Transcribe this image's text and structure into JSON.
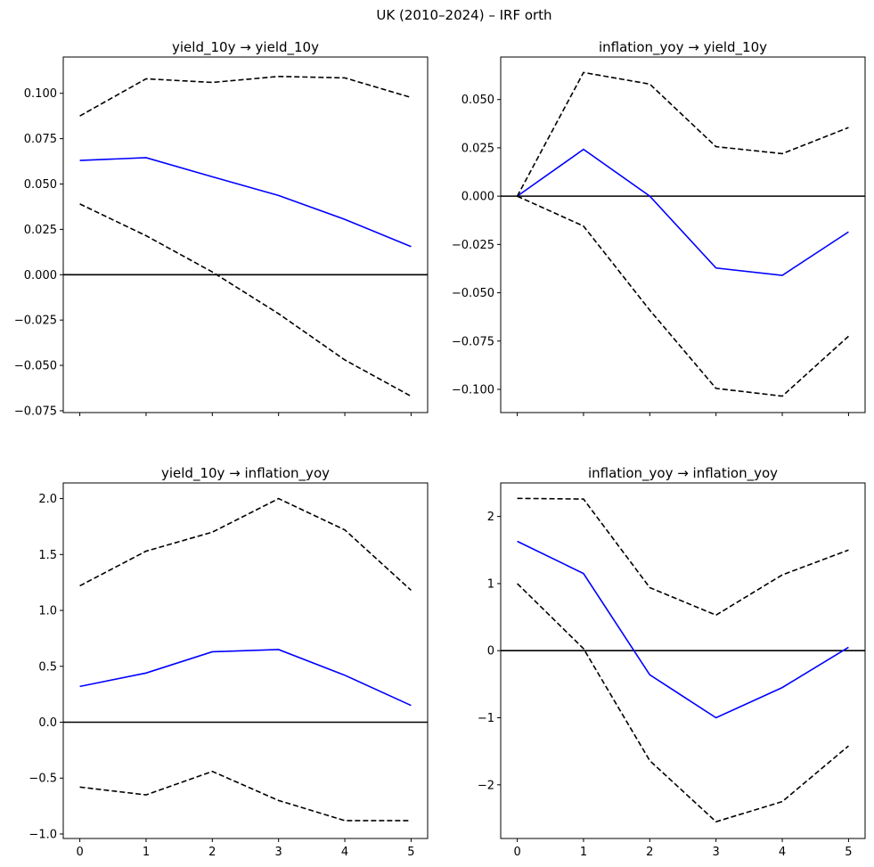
{
  "figure": {
    "title": "UK (2010–2024) – IRF orth"
  },
  "colors": {
    "irf_line": "#0000ff",
    "ci_band": "#000000",
    "zero_line": "#000000",
    "axes": "#000000",
    "background": "#ffffff"
  },
  "chart_data": [
    {
      "type": "line",
      "title": "yield_10y → yield_10y",
      "x": [
        0,
        1,
        2,
        3,
        4,
        5
      ],
      "xlim": [
        -0.25,
        5.25
      ],
      "ylim": [
        -0.076,
        0.12
      ],
      "yticks": [
        -0.075,
        -0.05,
        -0.025,
        0.0,
        0.025,
        0.05,
        0.075,
        0.1
      ],
      "yticklabels": [
        "−0.075",
        "−0.050",
        "−0.025",
        "0.000",
        "0.025",
        "0.050",
        "0.075",
        "0.100"
      ],
      "xticks": [
        0,
        1,
        2,
        3,
        4,
        5
      ],
      "xticklabels": [],
      "zero_line": true,
      "grid": false,
      "series": [
        {
          "role": "irf",
          "style": "solid",
          "values": [
            0.063,
            0.0645,
            0.054,
            0.0437,
            0.0305,
            0.0155
          ]
        },
        {
          "role": "upper",
          "style": "dashed",
          "values": [
            0.0875,
            0.108,
            0.106,
            0.1093,
            0.1085,
            0.0977
          ]
        },
        {
          "role": "lower",
          "style": "dashed",
          "values": [
            0.039,
            0.0215,
            0.0015,
            -0.0215,
            -0.047,
            -0.067
          ]
        }
      ]
    },
    {
      "type": "line",
      "title": "inflation_yoy → yield_10y",
      "x": [
        0,
        1,
        2,
        3,
        4,
        5
      ],
      "xlim": [
        -0.25,
        5.25
      ],
      "ylim": [
        -0.112,
        0.072
      ],
      "yticks": [
        -0.1,
        -0.075,
        -0.05,
        -0.025,
        0.0,
        0.025,
        0.05
      ],
      "yticklabels": [
        "−0.100",
        "−0.075",
        "−0.050",
        "−0.025",
        "0.000",
        "0.025",
        "0.050"
      ],
      "xticks": [
        0,
        1,
        2,
        3,
        4,
        5
      ],
      "xticklabels": [],
      "zero_line": true,
      "grid": false,
      "series": [
        {
          "role": "irf",
          "style": "solid",
          "values": [
            0.0,
            0.0242,
            0.0,
            -0.0372,
            -0.041,
            -0.0185
          ]
        },
        {
          "role": "upper",
          "style": "dashed",
          "values": [
            0.0,
            0.064,
            0.058,
            0.0256,
            0.022,
            0.0355
          ]
        },
        {
          "role": "lower",
          "style": "dashed",
          "values": [
            0.0,
            -0.0155,
            -0.059,
            -0.0995,
            -0.1035,
            -0.0725
          ]
        }
      ]
    },
    {
      "type": "line",
      "title": "yield_10y → inflation_yoy",
      "x": [
        0,
        1,
        2,
        3,
        4,
        5
      ],
      "xlim": [
        -0.25,
        5.25
      ],
      "ylim": [
        -1.04,
        2.14
      ],
      "yticks": [
        -1.0,
        -0.5,
        0.0,
        0.5,
        1.0,
        1.5,
        2.0
      ],
      "yticklabels": [
        "−1.0",
        "−0.5",
        "0.0",
        "0.5",
        "1.0",
        "1.5",
        "2.0"
      ],
      "xticks": [
        0,
        1,
        2,
        3,
        4,
        5
      ],
      "xticklabels": [
        "0",
        "1",
        "2",
        "3",
        "4",
        "5"
      ],
      "zero_line": true,
      "grid": false,
      "series": [
        {
          "role": "irf",
          "style": "solid",
          "values": [
            0.32,
            0.44,
            0.63,
            0.65,
            0.42,
            0.15
          ]
        },
        {
          "role": "upper",
          "style": "dashed",
          "values": [
            1.22,
            1.53,
            1.7,
            2.0,
            1.72,
            1.18
          ]
        },
        {
          "role": "lower",
          "style": "dashed",
          "values": [
            -0.58,
            -0.65,
            -0.44,
            -0.7,
            -0.88,
            -0.88
          ]
        }
      ]
    },
    {
      "type": "line",
      "title": "inflation_yoy → inflation_yoy",
      "x": [
        0,
        1,
        2,
        3,
        4,
        5
      ],
      "xlim": [
        -0.25,
        5.25
      ],
      "ylim": [
        -2.8,
        2.5
      ],
      "yticks": [
        -2,
        -1,
        0,
        1,
        2
      ],
      "yticklabels": [
        "−2",
        "−1",
        "0",
        "1",
        "2"
      ],
      "xticks": [
        0,
        1,
        2,
        3,
        4,
        5
      ],
      "xticklabels": [
        "0",
        "1",
        "2",
        "3",
        "4",
        "5"
      ],
      "zero_line": true,
      "grid": false,
      "series": [
        {
          "role": "irf",
          "style": "solid",
          "values": [
            1.63,
            1.15,
            -0.36,
            -1.0,
            -0.55,
            0.05
          ]
        },
        {
          "role": "upper",
          "style": "dashed",
          "values": [
            2.27,
            2.26,
            0.94,
            0.53,
            1.13,
            1.5
          ]
        },
        {
          "role": "lower",
          "style": "dashed",
          "values": [
            1.0,
            0.03,
            -1.64,
            -2.55,
            -2.25,
            -1.42
          ]
        }
      ]
    }
  ]
}
